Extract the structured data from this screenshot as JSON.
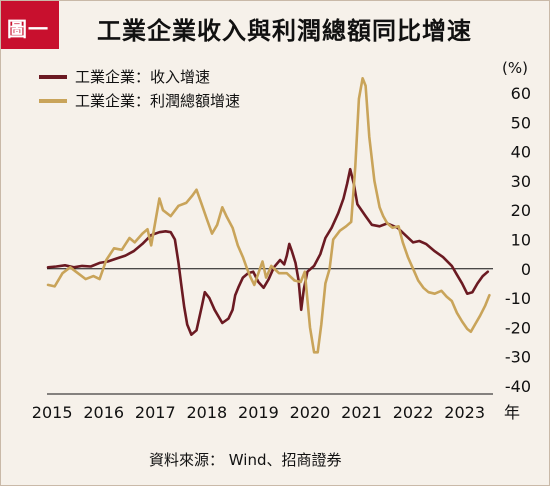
{
  "badge": "圖一",
  "title": "工業企業收入與利潤總額同比增速",
  "source": "資料來源： Wind、招商證券",
  "chart_data": {
    "type": "line",
    "ylabel": "(%)",
    "xunit": "年",
    "ylim": [
      -40,
      60
    ],
    "yticks": [
      60,
      50,
      40,
      30,
      20,
      10,
      0,
      -10,
      -20,
      -30,
      -40
    ],
    "ytick_colors": {
      "positive": "#111111",
      "negative": "#c8102e"
    },
    "xlim": [
      2014.9,
      2023.55
    ],
    "xticks": [
      "2015",
      "2016",
      "2017",
      "2018",
      "2019",
      "2020",
      "2021",
      "2022",
      "2023"
    ],
    "grid": false,
    "zero_line": true,
    "legend_position": "top-left",
    "series": [
      {
        "name": "工業企業：收入增速",
        "color": "#6b1a22",
        "points": [
          [
            2014.92,
            0.5
          ],
          [
            2015.08,
            0.8
          ],
          [
            2015.25,
            1.2
          ],
          [
            2015.42,
            0.5
          ],
          [
            2015.58,
            1.0
          ],
          [
            2015.75,
            0.8
          ],
          [
            2015.92,
            2.0
          ],
          [
            2016.08,
            2.5
          ],
          [
            2016.25,
            3.5
          ],
          [
            2016.42,
            4.5
          ],
          [
            2016.58,
            6.0
          ],
          [
            2016.75,
            8.5
          ],
          [
            2016.92,
            11.5
          ],
          [
            2017.08,
            12.5
          ],
          [
            2017.2,
            12.8
          ],
          [
            2017.3,
            12.5
          ],
          [
            2017.38,
            10.0
          ],
          [
            2017.45,
            2.0
          ],
          [
            2017.5,
            -5.0
          ],
          [
            2017.56,
            -13.0
          ],
          [
            2017.62,
            -19.0
          ],
          [
            2017.7,
            -22.5
          ],
          [
            2017.8,
            -21.0
          ],
          [
            2017.9,
            -13.0
          ],
          [
            2017.96,
            -8.0
          ],
          [
            2018.05,
            -10.0
          ],
          [
            2018.15,
            -14.0
          ],
          [
            2018.3,
            -18.5
          ],
          [
            2018.42,
            -17.0
          ],
          [
            2018.5,
            -14.0
          ],
          [
            2018.55,
            -9.0
          ],
          [
            2018.62,
            -6.0
          ],
          [
            2018.7,
            -3.0
          ],
          [
            2018.8,
            -1.5
          ],
          [
            2018.9,
            -1.0
          ],
          [
            2019.0,
            -4.5
          ],
          [
            2019.1,
            -6.5
          ],
          [
            2019.2,
            -3.5
          ],
          [
            2019.3,
            0.5
          ],
          [
            2019.42,
            3.0
          ],
          [
            2019.5,
            1.5
          ],
          [
            2019.55,
            4.5
          ],
          [
            2019.6,
            8.5
          ],
          [
            2019.65,
            6.0
          ],
          [
            2019.72,
            2.0
          ],
          [
            2019.78,
            -4.0
          ],
          [
            2019.83,
            -14.0
          ],
          [
            2019.88,
            -7.0
          ],
          [
            2019.95,
            -1.0
          ],
          [
            2020.08,
            1.0
          ],
          [
            2020.2,
            5.0
          ],
          [
            2020.3,
            10.5
          ],
          [
            2020.42,
            14.0
          ],
          [
            2020.55,
            19.0
          ],
          [
            2020.65,
            24.0
          ],
          [
            2020.72,
            29.0
          ],
          [
            2020.78,
            34.0
          ],
          [
            2020.85,
            29.0
          ],
          [
            2020.92,
            22.0
          ],
          [
            2021.08,
            18.0
          ],
          [
            2021.2,
            15.0
          ],
          [
            2021.35,
            14.5
          ],
          [
            2021.5,
            15.5
          ],
          [
            2021.7,
            14.0
          ],
          [
            2021.85,
            11.5
          ],
          [
            2022.0,
            9.0
          ],
          [
            2022.12,
            9.5
          ],
          [
            2022.25,
            8.5
          ],
          [
            2022.42,
            6.0
          ],
          [
            2022.58,
            4.0
          ],
          [
            2022.75,
            1.0
          ],
          [
            2022.85,
            -2.0
          ],
          [
            2022.95,
            -5.0
          ],
          [
            2023.05,
            -8.5
          ],
          [
            2023.15,
            -8.0
          ],
          [
            2023.25,
            -5.0
          ],
          [
            2023.35,
            -2.5
          ],
          [
            2023.45,
            -1.0
          ]
        ]
      },
      {
        "name": "工業企業：利潤總額增速",
        "color": "#c9a45a",
        "points": [
          [
            2014.92,
            -5.5
          ],
          [
            2015.05,
            -6.0
          ],
          [
            2015.2,
            -1.5
          ],
          [
            2015.35,
            0.5
          ],
          [
            2015.5,
            -1.5
          ],
          [
            2015.65,
            -3.5
          ],
          [
            2015.8,
            -2.5
          ],
          [
            2015.92,
            -3.5
          ],
          [
            2016.05,
            3.0
          ],
          [
            2016.2,
            7.0
          ],
          [
            2016.35,
            6.5
          ],
          [
            2016.5,
            10.5
          ],
          [
            2016.6,
            9.0
          ],
          [
            2016.75,
            12.0
          ],
          [
            2016.85,
            13.5
          ],
          [
            2016.92,
            8.0
          ],
          [
            2017.0,
            16.0
          ],
          [
            2017.08,
            24.0
          ],
          [
            2017.15,
            20.0
          ],
          [
            2017.3,
            18.0
          ],
          [
            2017.45,
            21.5
          ],
          [
            2017.6,
            22.5
          ],
          [
            2017.72,
            25.0
          ],
          [
            2017.8,
            27.0
          ],
          [
            2017.9,
            22.0
          ],
          [
            2018.0,
            17.0
          ],
          [
            2018.1,
            12.0
          ],
          [
            2018.2,
            15.0
          ],
          [
            2018.3,
            21.0
          ],
          [
            2018.38,
            18.0
          ],
          [
            2018.5,
            14.0
          ],
          [
            2018.6,
            8.0
          ],
          [
            2018.7,
            4.0
          ],
          [
            2018.78,
            0.0
          ],
          [
            2018.85,
            -3.0
          ],
          [
            2018.92,
            -5.5
          ],
          [
            2019.0,
            -1.5
          ],
          [
            2019.08,
            2.5
          ],
          [
            2019.15,
            -3.0
          ],
          [
            2019.25,
            1.0
          ],
          [
            2019.4,
            -1.5
          ],
          [
            2019.55,
            -1.5
          ],
          [
            2019.7,
            -4.0
          ],
          [
            2019.82,
            -4.5
          ],
          [
            2019.9,
            -1.0
          ],
          [
            2020.0,
            -20.0
          ],
          [
            2020.08,
            -28.5
          ],
          [
            2020.15,
            -28.5
          ],
          [
            2020.22,
            -19.0
          ],
          [
            2020.3,
            -5.0
          ],
          [
            2020.38,
            0.0
          ],
          [
            2020.45,
            10.0
          ],
          [
            2020.58,
            13.0
          ],
          [
            2020.7,
            14.5
          ],
          [
            2020.8,
            16.0
          ],
          [
            2020.88,
            35.0
          ],
          [
            2020.95,
            58.0
          ],
          [
            2021.02,
            65.0
          ],
          [
            2021.08,
            62.5
          ],
          [
            2021.15,
            45.0
          ],
          [
            2021.25,
            30.0
          ],
          [
            2021.35,
            21.0
          ],
          [
            2021.42,
            18.0
          ],
          [
            2021.5,
            15.5
          ],
          [
            2021.6,
            14.0
          ],
          [
            2021.72,
            14.5
          ],
          [
            2021.8,
            9.0
          ],
          [
            2021.9,
            4.0
          ],
          [
            2022.0,
            0.0
          ],
          [
            2022.1,
            -4.0
          ],
          [
            2022.2,
            -6.5
          ],
          [
            2022.3,
            -8.0
          ],
          [
            2022.42,
            -8.5
          ],
          [
            2022.55,
            -7.5
          ],
          [
            2022.65,
            -9.5
          ],
          [
            2022.75,
            -11.0
          ],
          [
            2022.85,
            -15.0
          ],
          [
            2022.95,
            -18.0
          ],
          [
            2023.05,
            -20.5
          ],
          [
            2023.12,
            -21.5
          ],
          [
            2023.2,
            -19.0
          ],
          [
            2023.3,
            -16.0
          ],
          [
            2023.4,
            -12.5
          ],
          [
            2023.48,
            -9.0
          ]
        ]
      }
    ]
  }
}
